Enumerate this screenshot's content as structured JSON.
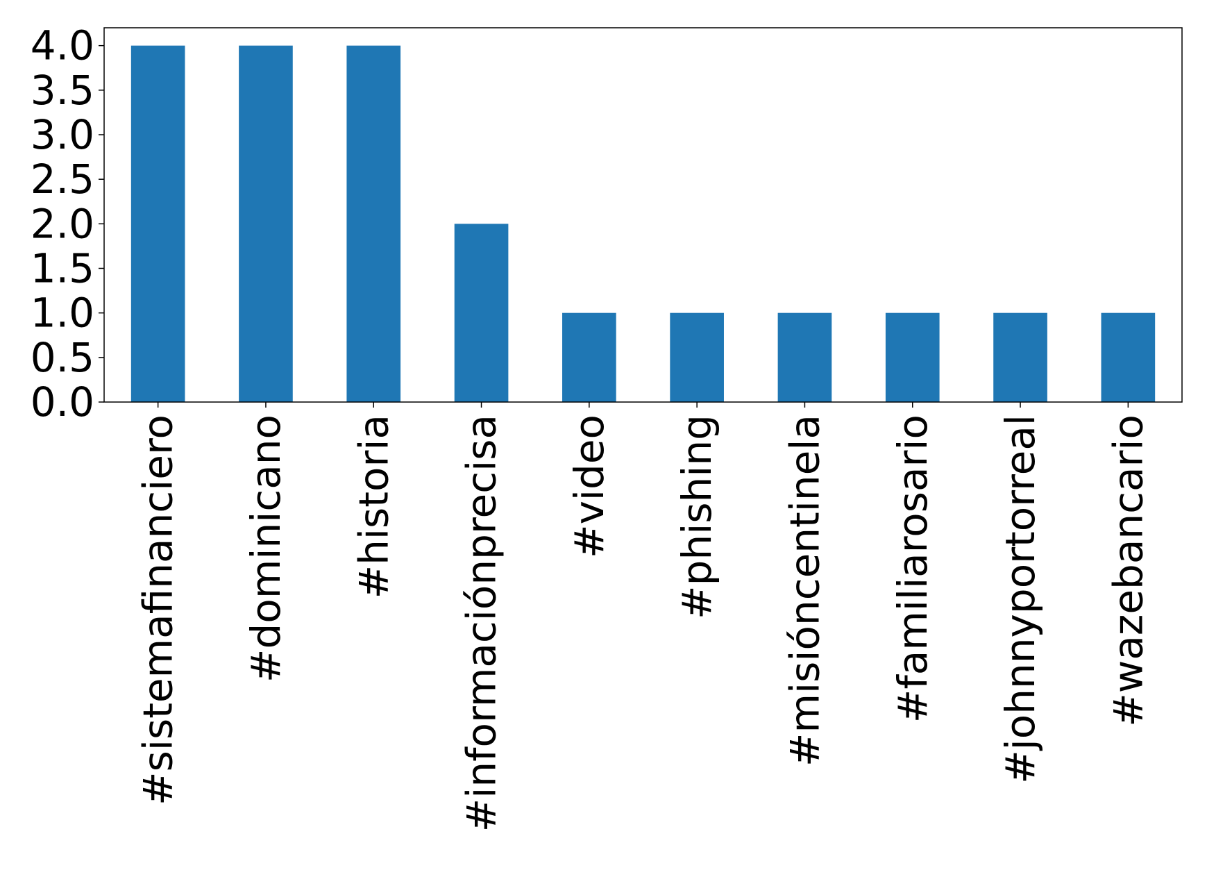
{
  "chart_data": {
    "type": "bar",
    "categories": [
      "#sistemafinanciero",
      "#dominicano",
      "#historia",
      "#informaciónprecisa",
      "#video",
      "#phishing",
      "#misióncentinela",
      "#familiarosario",
      "#johnnyportorreal",
      "#wazebancario"
    ],
    "values": [
      4,
      4,
      4,
      2,
      1,
      1,
      1,
      1,
      1,
      1
    ],
    "ylim": [
      0,
      4.2
    ],
    "yticks": [
      "0.0",
      "0.5",
      "1.0",
      "1.5",
      "2.0",
      "2.5",
      "3.0",
      "3.5",
      "4.0"
    ],
    "bar_color": "#1f77b4",
    "title": "",
    "xlabel": "",
    "ylabel": "",
    "grid": false,
    "legend": "none"
  }
}
